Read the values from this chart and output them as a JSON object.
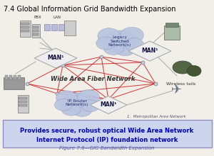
{
  "title": "7.4 Global Information Grid Bandwidth Expansion",
  "fig_caption": "Figure 7.6—GIG Bandwidth Expansion",
  "bottom_text_line1": "Provides secure, robust optical Wide Area Network",
  "bottom_text_line2": "Internet Protocol (IP) foundation network",
  "footnote": "1.  Metropolitan Area Network",
  "wan_label": "Wide Area Fiber Network",
  "wireless_label": "Wireless tails",
  "man_labels": [
    "MAN¹",
    "MAN¹",
    "MAN¹"
  ],
  "cloud1_label": "Legacy\nSwitched\nNetwork(s)",
  "cloud2_label": "IP Router\nNetwork(s)",
  "pbx_label": "PBX",
  "lan_label": "LAN",
  "bg_color": "#f2efe9",
  "edge_color": "#cc2222",
  "cloud_color": "#b8c4e0",
  "bottom_box_color": "#ccd4ee",
  "bottom_text_color": "#0000bb",
  "fig_caption_color": "#5555aa"
}
